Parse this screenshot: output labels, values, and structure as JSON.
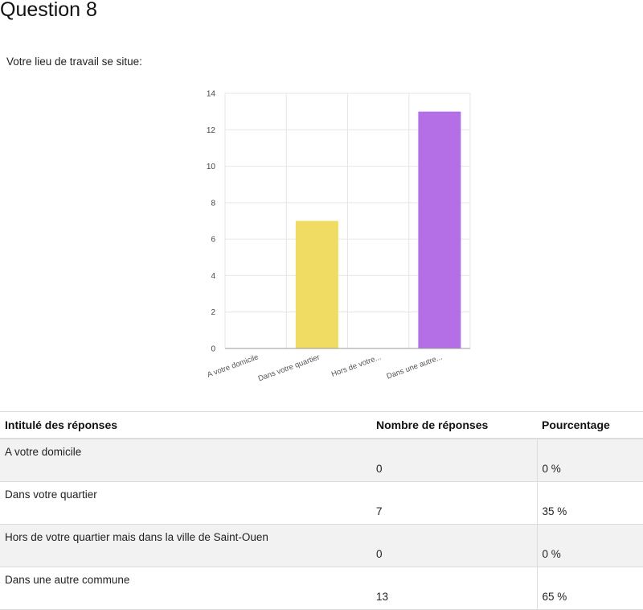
{
  "page": {
    "title": "Question 8",
    "question": "Votre lieu de travail se situe:"
  },
  "chart_data": {
    "type": "bar",
    "categories": [
      "A votre domicile",
      "Dans votre quartier",
      "Hors de votre...",
      "Dans une autre..."
    ],
    "values": [
      0,
      7,
      0,
      13
    ],
    "colors": [
      "#4a8fd9",
      "#f0dc62",
      "#e07c3c",
      "#b56fe6"
    ],
    "ylim": [
      0,
      14
    ],
    "yticks": [
      0,
      2,
      4,
      6,
      8,
      10,
      12,
      14
    ],
    "grid": true,
    "legend": "none"
  },
  "table": {
    "headers": [
      "Intitulé des réponses",
      "Nombre de réponses",
      "Pourcentage"
    ],
    "rows": [
      {
        "label": "A votre domicile",
        "count": "0",
        "percent": "0 %"
      },
      {
        "label": "Dans votre quartier",
        "count": "7",
        "percent": "35 %"
      },
      {
        "label": "Hors de votre quartier mais dans la ville de Saint-Ouen",
        "count": "0",
        "percent": "0 %"
      },
      {
        "label": "Dans une autre commune",
        "count": "13",
        "percent": "65 %"
      }
    ]
  }
}
